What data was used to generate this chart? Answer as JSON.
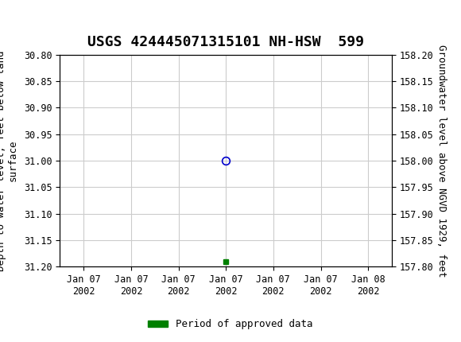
{
  "title": "USGS 424445071315101 NH-HSW  599",
  "ylabel_left": "Depth to water level, feet below land\nsurface",
  "ylabel_right": "Groundwater level above NGVD 1929, feet",
  "ylim_left": [
    30.8,
    31.2
  ],
  "ylim_right": [
    157.8,
    158.2
  ],
  "left_yticks": [
    30.8,
    30.85,
    30.9,
    30.95,
    31.0,
    31.05,
    31.1,
    31.15,
    31.2
  ],
  "right_yticks": [
    158.2,
    158.15,
    158.1,
    158.05,
    158.0,
    157.95,
    157.9,
    157.85,
    157.8
  ],
  "data_point_x": 3.0,
  "data_point_y": 31.0,
  "green_square_x": 3.0,
  "green_square_y": 31.19,
  "x_tick_positions": [
    0,
    1,
    2,
    3,
    4,
    5,
    6
  ],
  "x_tick_labels": [
    "Jan 07\n2002",
    "Jan 07\n2002",
    "Jan 07\n2002",
    "Jan 07\n2002",
    "Jan 07\n2002",
    "Jan 07\n2002",
    "Jan 08\n2002"
  ],
  "xlim": [
    -0.5,
    6.5
  ],
  "header_color": "#006633",
  "header_text_color": "#ffffff",
  "plot_bg_color": "#ffffff",
  "grid_color": "#cccccc",
  "data_point_color": "#0000cc",
  "green_color": "#008000",
  "legend_label": "Period of approved data",
  "font_family": "DejaVu Sans Mono",
  "title_fontsize": 13,
  "axis_label_fontsize": 9,
  "tick_fontsize": 8.5
}
